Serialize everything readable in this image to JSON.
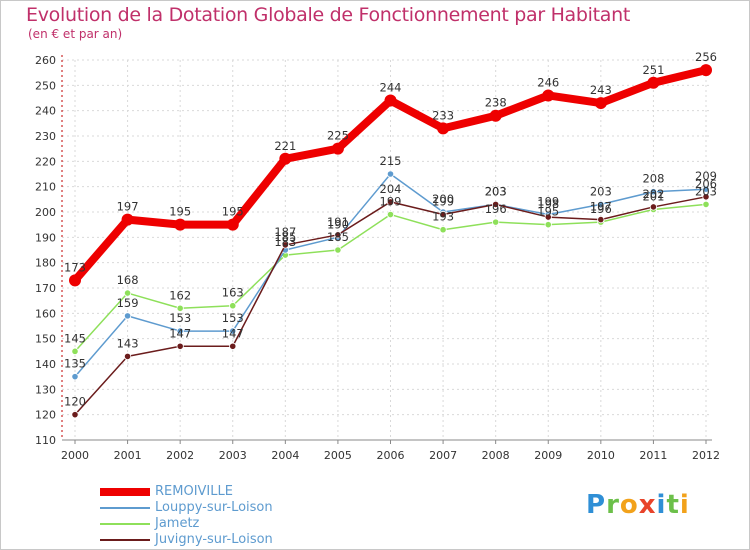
{
  "title": "Evolution de la Dotation Globale de Fonctionnement par Habitant",
  "subtitle": "(en € et par an)",
  "chart_data": {
    "type": "line",
    "x": [
      "2000",
      "2001",
      "2002",
      "2003",
      "2004",
      "2005",
      "2006",
      "2007",
      "2008",
      "2009",
      "2010",
      "2011",
      "2012"
    ],
    "ylim": [
      110,
      260
    ],
    "yticks": [
      110,
      120,
      130,
      140,
      150,
      160,
      170,
      180,
      190,
      200,
      210,
      220,
      230,
      240,
      250,
      260
    ],
    "grid": true,
    "legend_position": "bottom-left",
    "series": [
      {
        "name": "REMOIVILLE",
        "color": "#ee0000",
        "values": [
          173,
          197,
          195,
          195,
          221,
          225,
          244,
          233,
          238,
          246,
          243,
          251,
          256
        ]
      },
      {
        "name": "Louppy-sur-Loison",
        "color": "#5e9bcf",
        "values": [
          135,
          159,
          153,
          153,
          185,
          190,
          215,
          200,
          203,
          199,
          203,
          208,
          209
        ]
      },
      {
        "name": "Jametz",
        "color": "#8ee05a",
        "values": [
          145,
          168,
          162,
          163,
          183,
          185,
          199,
          193,
          196,
          195,
          196,
          201,
          203
        ]
      },
      {
        "name": "Juvigny-sur-Loison",
        "color": "#6b1c1c",
        "values": [
          120,
          143,
          147,
          147,
          187,
          191,
          204,
          199,
          203,
          198,
          197,
          202,
          206
        ]
      }
    ],
    "labels": [
      {
        "series": 0,
        "text": [
          "173",
          "197",
          "195",
          "195",
          "221",
          "225",
          "244",
          "233",
          "238",
          "246",
          "243",
          "251",
          "256"
        ]
      },
      {
        "series": 1,
        "text": [
          "135",
          "159",
          "153",
          "153",
          "185",
          "190",
          "215",
          "200",
          "203",
          "199",
          "203",
          "208",
          "209"
        ]
      },
      {
        "series": 2,
        "text": [
          "145",
          "168",
          "162",
          "163",
          "183",
          "185",
          "199",
          "193",
          "196",
          "195",
          "196",
          "201",
          "203"
        ]
      },
      {
        "series": 3,
        "text": [
          "120",
          "143",
          "147",
          "147",
          "187",
          "191",
          "204",
          "199",
          "203",
          "198",
          "197",
          "202",
          "206"
        ]
      }
    ]
  },
  "legend": {
    "items": [
      "REMOIVILLE",
      "Louppy-sur-Loison",
      "Jametz",
      "Juvigny-sur-Loison"
    ]
  },
  "logo": {
    "letters": [
      "P",
      "r",
      "o",
      "x",
      "i",
      "t",
      "i"
    ],
    "colors": [
      "#2f8fd6",
      "#6cc04a",
      "#f2a21b",
      "#e8432a",
      "#2f8fd6",
      "#6cc04a",
      "#f2a21b"
    ]
  }
}
